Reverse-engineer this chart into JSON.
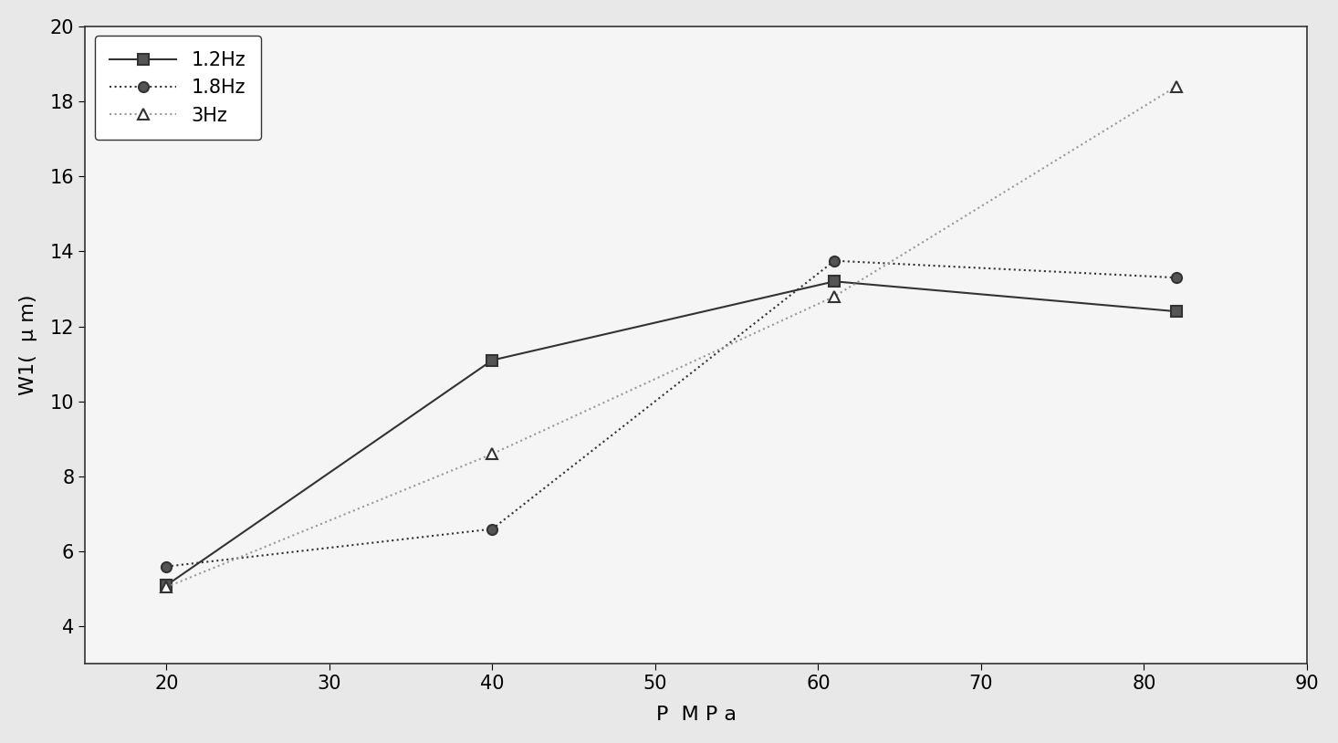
{
  "series": [
    {
      "label": "1.2Hz",
      "x": [
        20,
        40,
        61,
        82
      ],
      "y": [
        5.1,
        11.1,
        13.2,
        12.4
      ],
      "color": "#333333",
      "linestyle": "-",
      "marker": "s",
      "linewidth": 1.5,
      "markersize": 8
    },
    {
      "label": "1.8Hz",
      "x": [
        20,
        40,
        61,
        82
      ],
      "y": [
        5.6,
        6.6,
        13.75,
        13.3
      ],
      "color": "#333333",
      "linestyle": ":",
      "marker": "o",
      "linewidth": 1.5,
      "markersize": 8
    },
    {
      "label": "3Hz",
      "x": [
        20,
        40,
        61,
        82
      ],
      "y": [
        5.05,
        8.6,
        12.8,
        18.4
      ],
      "color": "#999999",
      "linestyle": ":",
      "marker": "^",
      "linewidth": 1.5,
      "markersize": 8
    }
  ],
  "xlim": [
    15,
    90
  ],
  "ylim": [
    3,
    20
  ],
  "xticks": [
    20,
    30,
    40,
    50,
    60,
    70,
    80,
    90
  ],
  "yticks": [
    4,
    6,
    8,
    10,
    12,
    14,
    16,
    18,
    20
  ],
  "xlabel": "P  M P a",
  "ylabel": "W1(  μ m)",
  "legend_loc": "upper left",
  "background_color": "#f0f0f0",
  "title_fontsize": 14,
  "axis_fontsize": 16,
  "tick_fontsize": 15,
  "legend_fontsize": 15
}
